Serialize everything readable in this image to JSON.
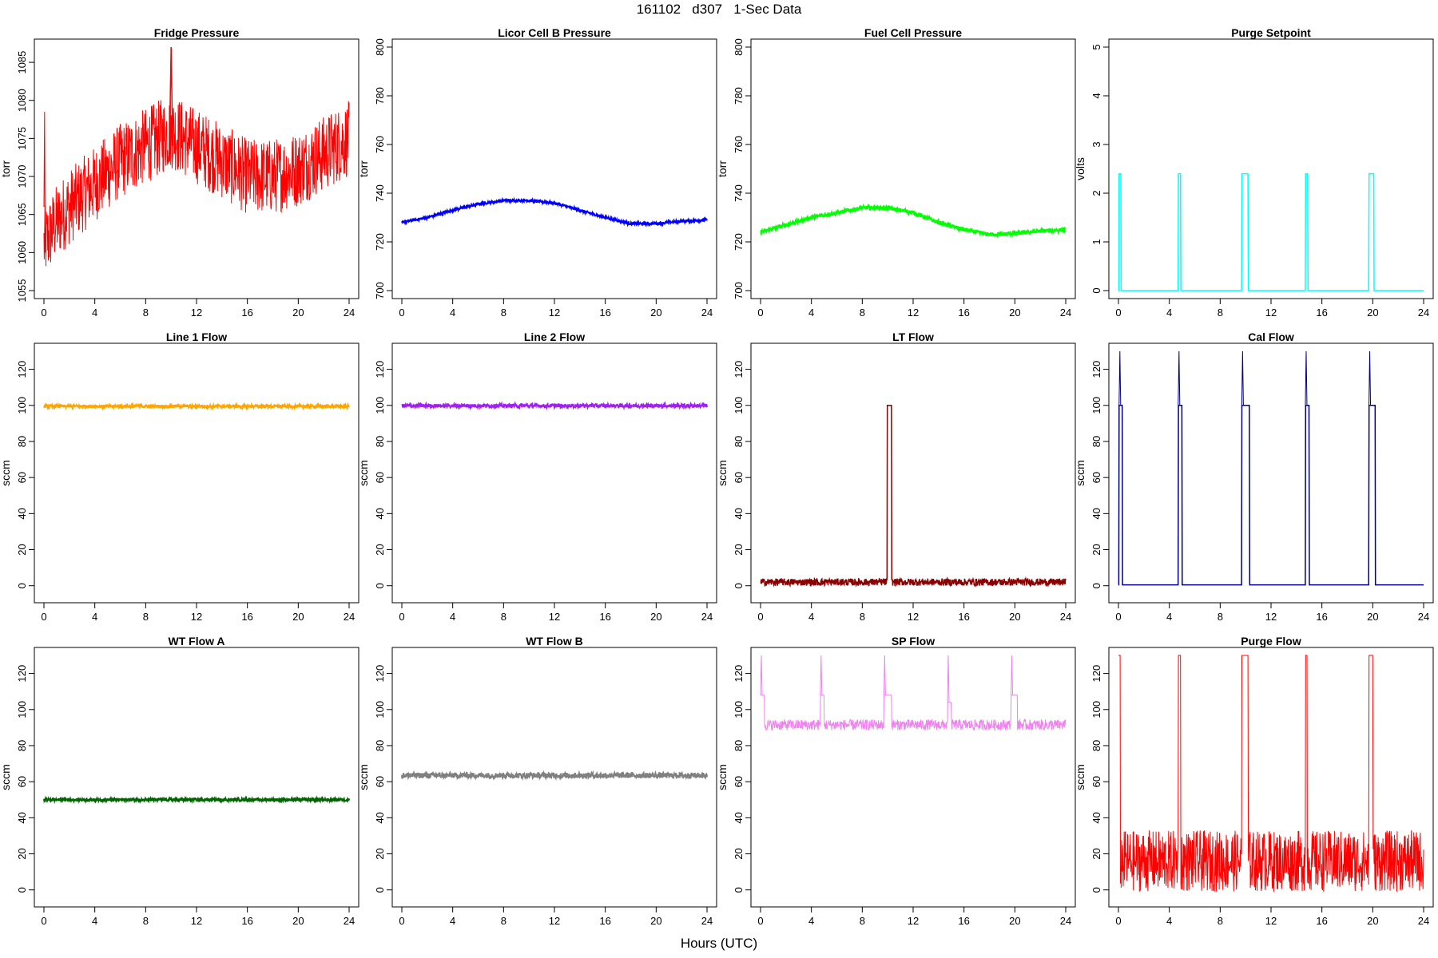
{
  "title": "161102   d307   1-Sec Data",
  "xlabel": "Hours (UTC)",
  "chart_data": [
    {
      "type": "line",
      "title": "Fridge Pressure",
      "ylabel": "torr",
      "color": "#ff0000",
      "xlim": [
        0,
        24
      ],
      "ylim": [
        1055,
        1087
      ],
      "x_ticks": [
        0,
        4,
        8,
        12,
        16,
        20,
        24
      ],
      "y_ticks": [
        1055,
        1060,
        1065,
        1070,
        1075,
        1080,
        1085
      ],
      "trend": {
        "x": [
          0,
          1,
          2,
          4,
          6,
          8,
          10,
          12,
          14,
          16,
          18,
          20,
          22,
          24
        ],
        "y": [
          1061,
          1064,
          1066,
          1069,
          1072,
          1074,
          1076,
          1074,
          1072,
          1070,
          1070,
          1071,
          1073,
          1075
        ]
      },
      "noise_amplitude": 5,
      "annotations": "spike near hour 10 reaching 1087"
    },
    {
      "type": "line",
      "title": "Licor Cell B Pressure",
      "ylabel": "torr",
      "color": "#0000ff",
      "xlim": [
        0,
        24
      ],
      "ylim": [
        700,
        800
      ],
      "x_ticks": [
        0,
        4,
        8,
        12,
        16,
        20,
        24
      ],
      "y_ticks": [
        700,
        720,
        740,
        760,
        780,
        800
      ],
      "trend": {
        "x": [
          0,
          2,
          4,
          6,
          8,
          10,
          12,
          14,
          16,
          18,
          20,
          22,
          24
        ],
        "y": [
          728,
          730,
          733,
          735.5,
          737,
          737,
          736,
          733,
          730,
          727.5,
          727.5,
          728.5,
          729
        ]
      },
      "noise_amplitude": 0.5
    },
    {
      "type": "line",
      "title": "Fuel Cell Pressure",
      "ylabel": "torr",
      "color": "#00ff00",
      "xlim": [
        0,
        24
      ],
      "ylim": [
        700,
        800
      ],
      "x_ticks": [
        0,
        4,
        8,
        12,
        16,
        20,
        24
      ],
      "y_ticks": [
        700,
        720,
        740,
        760,
        780,
        800
      ],
      "trend": {
        "x": [
          0,
          2,
          4,
          6,
          8,
          10,
          12,
          14,
          16,
          18,
          20,
          22,
          24
        ],
        "y": [
          724,
          727,
          730,
          732,
          734,
          734,
          732,
          728,
          725,
          723,
          723.5,
          724.5,
          725
        ]
      },
      "noise_amplitude": 0.8
    },
    {
      "type": "line",
      "title": "Purge Setpoint",
      "ylabel": "volts",
      "color": "#00ffff",
      "xlim": [
        0,
        24
      ],
      "ylim": [
        0,
        5
      ],
      "x_ticks": [
        0,
        4,
        8,
        12,
        16,
        20,
        24
      ],
      "y_ticks": [
        0,
        1,
        2,
        3,
        4,
        5
      ],
      "baseline": 0,
      "pulses": [
        {
          "start": 0.05,
          "end": 0.2,
          "value": 2.4
        },
        {
          "start": 4.7,
          "end": 4.9,
          "value": 2.4
        },
        {
          "start": 9.7,
          "end": 10.2,
          "value": 2.4
        },
        {
          "start": 14.7,
          "end": 14.9,
          "value": 2.4
        },
        {
          "start": 19.7,
          "end": 20.1,
          "value": 2.4
        }
      ],
      "noise_amplitude": 0
    },
    {
      "type": "line",
      "title": "Line 1 Flow",
      "ylabel": "sccm",
      "color": "#ffa500",
      "xlim": [
        0,
        24
      ],
      "ylim": [
        -5,
        130
      ],
      "x_ticks": [
        0,
        4,
        8,
        12,
        16,
        20,
        24
      ],
      "y_ticks": [
        0,
        20,
        40,
        60,
        80,
        100,
        120
      ],
      "trend": {
        "x": [
          0,
          24
        ],
        "y": [
          99.5,
          99.5
        ]
      },
      "noise_amplitude": 0.8
    },
    {
      "type": "line",
      "title": "Line 2 Flow",
      "ylabel": "sccm",
      "color": "#a020f0",
      "xlim": [
        0,
        24
      ],
      "ylim": [
        -5,
        130
      ],
      "x_ticks": [
        0,
        4,
        8,
        12,
        16,
        20,
        24
      ],
      "y_ticks": [
        0,
        20,
        40,
        60,
        80,
        100,
        120
      ],
      "trend": {
        "x": [
          0,
          24
        ],
        "y": [
          99.8,
          99.8
        ]
      },
      "noise_amplitude": 1
    },
    {
      "type": "line",
      "title": "LT Flow",
      "ylabel": "sccm",
      "color": "#8b0000",
      "xlim": [
        0,
        24
      ],
      "ylim": [
        -5,
        130
      ],
      "x_ticks": [
        0,
        4,
        8,
        12,
        16,
        20,
        24
      ],
      "y_ticks": [
        0,
        20,
        40,
        60,
        80,
        100,
        120
      ],
      "baseline": 2,
      "pulses": [
        {
          "start": 9.95,
          "end": 10.3,
          "value": 100
        }
      ],
      "noise_amplitude": 2
    },
    {
      "type": "line",
      "title": "Cal Flow",
      "ylabel": "sccm",
      "color": "#00008b",
      "xlim": [
        0,
        24
      ],
      "ylim": [
        -5,
        130
      ],
      "x_ticks": [
        0,
        4,
        8,
        12,
        16,
        20,
        24
      ],
      "y_ticks": [
        0,
        20,
        40,
        60,
        80,
        100,
        120
      ],
      "baseline": 0.5,
      "pulses": [
        {
          "start": 0.05,
          "end": 0.3,
          "value": 100
        },
        {
          "start": 4.7,
          "end": 5.0,
          "value": 100
        },
        {
          "start": 9.7,
          "end": 10.3,
          "value": 100
        },
        {
          "start": 14.7,
          "end": 15.0,
          "value": 100
        },
        {
          "start": 19.7,
          "end": 20.2,
          "value": 100
        }
      ],
      "spike_value": 130,
      "noise_amplitude": 0
    },
    {
      "type": "line",
      "title": "WT Flow A",
      "ylabel": "sccm",
      "color": "#006400",
      "xlim": [
        0,
        24
      ],
      "ylim": [
        -5,
        130
      ],
      "x_ticks": [
        0,
        4,
        8,
        12,
        16,
        20,
        24
      ],
      "y_ticks": [
        0,
        20,
        40,
        60,
        80,
        100,
        120
      ],
      "trend": {
        "x": [
          0,
          24
        ],
        "y": [
          50,
          50
        ]
      },
      "noise_amplitude": 0.8
    },
    {
      "type": "line",
      "title": "WT Flow B",
      "ylabel": "sccm",
      "color": "#808080",
      "xlim": [
        0,
        24
      ],
      "ylim": [
        -5,
        130
      ],
      "x_ticks": [
        0,
        4,
        8,
        12,
        16,
        20,
        24
      ],
      "y_ticks": [
        0,
        20,
        40,
        60,
        80,
        100,
        120
      ],
      "trend": {
        "x": [
          0,
          24
        ],
        "y": [
          63.5,
          63.5
        ]
      },
      "noise_amplitude": 1.5
    },
    {
      "type": "line",
      "title": "SP Flow",
      "ylabel": "sccm",
      "color": "#ee82ee",
      "xlim": [
        0,
        24
      ],
      "ylim": [
        -5,
        130
      ],
      "x_ticks": [
        0,
        4,
        8,
        12,
        16,
        20,
        24
      ],
      "y_ticks": [
        0,
        20,
        40,
        60,
        80,
        100,
        120
      ],
      "baseline": 91.5,
      "pulses": [
        {
          "start": 0.0,
          "end": 0.3,
          "value": 108
        },
        {
          "start": 4.7,
          "end": 5.0,
          "value": 108
        },
        {
          "start": 9.7,
          "end": 10.3,
          "value": 108
        },
        {
          "start": 14.7,
          "end": 15.0,
          "value": 104
        },
        {
          "start": 19.7,
          "end": 20.2,
          "value": 108
        }
      ],
      "spike_value": 130,
      "noise_amplitude": 3
    },
    {
      "type": "line",
      "title": "Purge Flow",
      "ylabel": "sccm",
      "color": "#ff0000",
      "xlim": [
        0,
        24
      ],
      "ylim": [
        -5,
        130
      ],
      "x_ticks": [
        0,
        4,
        8,
        12,
        16,
        20,
        24
      ],
      "y_ticks": [
        0,
        20,
        40,
        60,
        80,
        100,
        120
      ],
      "baseline": 16,
      "pulses": [
        {
          "start": 0.0,
          "end": 0.15,
          "value": 130
        },
        {
          "start": 4.7,
          "end": 4.9,
          "value": 130
        },
        {
          "start": 9.7,
          "end": 10.2,
          "value": 130
        },
        {
          "start": 14.7,
          "end": 14.85,
          "value": 130
        },
        {
          "start": 19.7,
          "end": 20.0,
          "value": 130
        }
      ],
      "noise_amplitude": 17,
      "noise_floor": -3
    }
  ]
}
